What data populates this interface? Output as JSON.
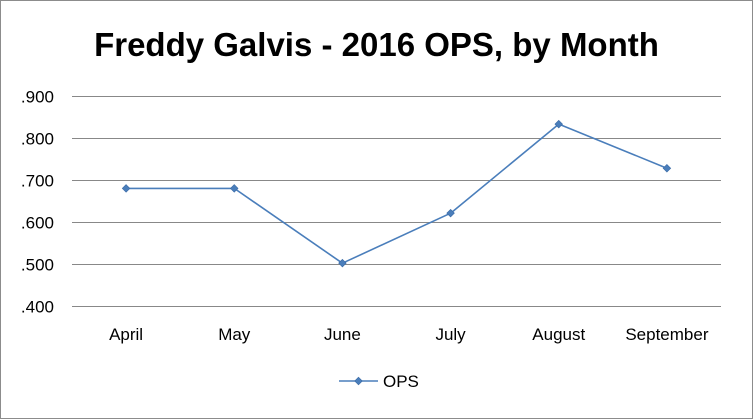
{
  "chart_data": {
    "type": "line",
    "title": "Freddy Galvis - 2016 OPS, by Month",
    "xlabel": "",
    "ylabel": "",
    "categories": [
      "April",
      "May",
      "June",
      "July",
      "August",
      "September"
    ],
    "series": [
      {
        "name": "OPS",
        "values": [
          0.68,
          0.68,
          0.502,
          0.621,
          0.833,
          0.728
        ],
        "color": "#4a7ebb",
        "marker": "diamond"
      }
    ],
    "ylim": [
      0.4,
      0.9
    ],
    "y_ticks": [
      ".900",
      ".800",
      ".700",
      ".600",
      ".500",
      ".400"
    ],
    "y_tick_values": [
      0.9,
      0.8,
      0.7,
      0.6,
      0.5,
      0.4
    ],
    "grid": true,
    "legend": "bottom",
    "gridline_color": "#888888"
  }
}
